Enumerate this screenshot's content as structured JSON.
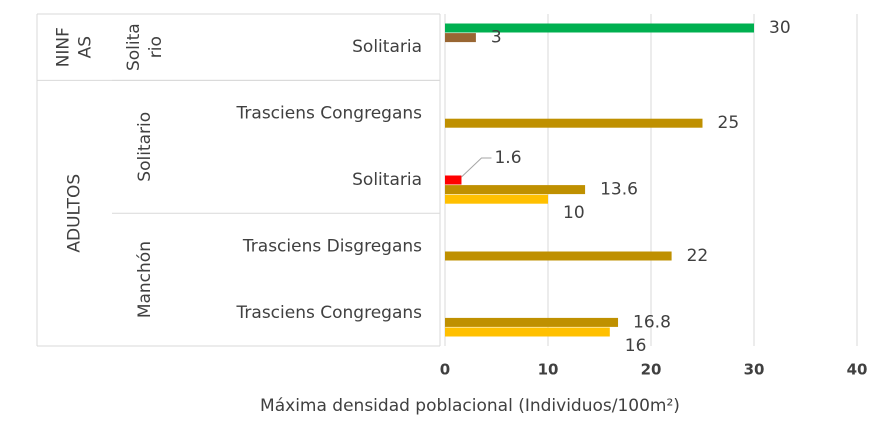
{
  "chart_data": {
    "type": "bar",
    "orientation": "horizontal",
    "categories": [
      "Solitaria",
      "Trasciens Congregans",
      "Solitaria",
      "Trasciens Disgregans",
      "Trasciens Congregans"
    ],
    "category_levels": [
      [
        "NINF AS",
        "ADULTOS",
        "ADULTOS",
        "ADULTOS",
        "ADULTOS"
      ],
      [
        "Solita rio",
        "Solitario",
        "Solitario",
        "Manchón",
        "Manchón"
      ]
    ],
    "series": [
      {
        "color": "#00b050",
        "values": [
          30,
          null,
          null,
          null,
          null
        ]
      },
      {
        "color": "#996633",
        "values": [
          3,
          null,
          null,
          null,
          null
        ]
      },
      {
        "color": "#ff0000",
        "values": [
          null,
          null,
          1.6,
          null,
          null
        ]
      },
      {
        "color": "#bf9000",
        "values": [
          null,
          25,
          13.6,
          22,
          16.8
        ]
      },
      {
        "color": "#ffc000",
        "values": [
          null,
          null,
          10,
          null,
          16
        ]
      }
    ],
    "xlim": [
      0,
      40
    ],
    "xticks": [
      0,
      10,
      20,
      30,
      40
    ],
    "grid": true,
    "x_label": "Máxima densidad poblacional (Individuos/100m²)"
  }
}
